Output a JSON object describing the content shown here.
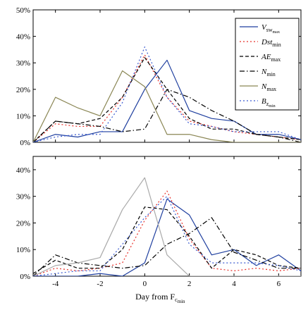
{
  "chart_data": [
    {
      "type": "line",
      "panel": "top",
      "title": "",
      "ylabel": "",
      "xlabel": "",
      "xlim": [
        -5,
        7
      ],
      "ylim": [
        0,
        50
      ],
      "x": [
        -5,
        -4,
        -3,
        -2,
        -1,
        0,
        1,
        2,
        3,
        4,
        5,
        6,
        7
      ],
      "xticks": [
        -4,
        -2,
        0,
        2,
        4,
        6
      ],
      "xtick_labels": [],
      "yticks": [
        0,
        10,
        20,
        30,
        40,
        50
      ],
      "ytick_labels": [
        "0%",
        "10%",
        "20%",
        "30%",
        "40%",
        "50%"
      ],
      "grid": false,
      "legend_position": "top-right",
      "series": [
        {
          "name": "V",
          "sub": "sw",
          "sub2": "max",
          "color": "#1f3f9f",
          "dash": "solid",
          "values": [
            0,
            3,
            2,
            4,
            4,
            20,
            31,
            12,
            9,
            8,
            3,
            3,
            1
          ]
        },
        {
          "name": "Dst",
          "sub": "min",
          "sub2": "",
          "color": "#e8302a",
          "dash": "dot",
          "values": [
            0,
            7,
            6,
            6,
            17,
            33,
            17,
            8,
            6,
            4,
            3,
            2,
            1
          ]
        },
        {
          "name": "AE",
          "sub": "max",
          "sub2": "",
          "color": "#000000",
          "dash": "dash",
          "values": [
            0,
            8,
            7,
            9,
            17,
            32,
            20,
            9,
            5,
            5,
            3,
            2,
            1
          ]
        },
        {
          "name": "N",
          "sub": "min",
          "sub2": "",
          "color": "#000000",
          "dash": "dashdot",
          "values": [
            0,
            8,
            7,
            6,
            4,
            5,
            20,
            17,
            12,
            8,
            3,
            2,
            0
          ]
        },
        {
          "name": "N",
          "sub": "max",
          "sub2": "",
          "color": "#8a8654",
          "dash": "solid",
          "values": [
            0,
            17,
            13,
            10,
            27,
            21,
            3,
            3,
            1,
            0,
            0,
            0,
            0
          ]
        },
        {
          "name": "B",
          "sub": "z",
          "sub2": "min",
          "color": "#3a5ad0",
          "dash": "dot",
          "values": [
            0,
            2,
            3,
            3,
            15,
            36,
            17,
            7,
            6,
            4,
            4,
            4,
            1
          ]
        }
      ]
    },
    {
      "type": "line",
      "panel": "bottom",
      "title": "",
      "ylabel": "",
      "xlabel": "Day from F",
      "xlabel_sub": "c",
      "xlabel_sub2": "min",
      "xlim": [
        -5,
        7
      ],
      "ylim": [
        0,
        45
      ],
      "x": [
        -5,
        -4,
        -3,
        -2,
        -1,
        0,
        1,
        2,
        3,
        4,
        5,
        6,
        7
      ],
      "xticks": [
        -4,
        -2,
        0,
        2,
        4,
        6
      ],
      "xtick_labels": [
        "-4",
        "-2",
        "0",
        "2",
        "4",
        "6"
      ],
      "yticks": [
        0,
        10,
        20,
        30,
        40
      ],
      "ytick_labels": [
        "0%",
        "10%",
        "20%",
        "30%",
        "40%"
      ],
      "grid": false,
      "series": [
        {
          "color": "#1f3f9f",
          "dash": "solid",
          "values": [
            0,
            0,
            0,
            1,
            0,
            5,
            29,
            23,
            8,
            10,
            4,
            8,
            2
          ]
        },
        {
          "color": "#e8302a",
          "dash": "dot",
          "values": [
            0,
            3,
            2,
            3,
            5,
            21,
            32,
            14,
            3,
            2,
            3,
            2,
            3
          ]
        },
        {
          "color": "#000000",
          "dash": "dash",
          "values": [
            1,
            6,
            3,
            3,
            10,
            26,
            25,
            15,
            3,
            10,
            8,
            4,
            3
          ]
        },
        {
          "color": "#000000",
          "dash": "dashdot",
          "values": [
            0,
            8,
            5,
            4,
            3,
            4,
            12,
            16,
            22,
            9,
            6,
            3,
            3
          ]
        },
        {
          "color": "#aaaaaa",
          "dash": "solid",
          "values": [
            0,
            4,
            5,
            7,
            25,
            37,
            8,
            0,
            0,
            0,
            0,
            0,
            0
          ]
        },
        {
          "color": "#3a5ad0",
          "dash": "dot",
          "values": [
            0,
            1,
            2,
            2,
            12,
            22,
            30,
            12,
            5,
            5,
            5,
            4,
            2
          ]
        }
      ]
    }
  ]
}
